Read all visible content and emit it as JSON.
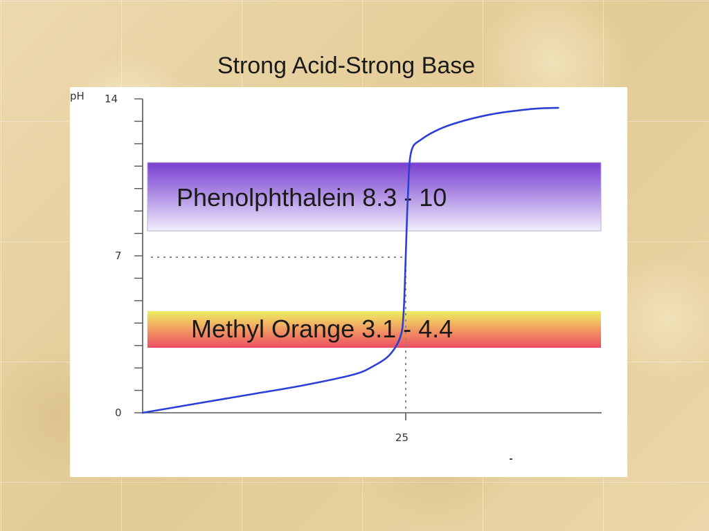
{
  "slide": {
    "title": "Strong Acid-Strong Base"
  },
  "chart_data": {
    "type": "line",
    "ylabel": "pH",
    "ylim": [
      0,
      14
    ],
    "y_ticks_labeled": [
      0,
      7,
      14
    ],
    "x_ticks_labeled": [
      25
    ],
    "equivalence_point": {
      "x": 25,
      "y": 7
    },
    "grid": false,
    "series": [
      {
        "color": "#2b3fd6",
        "x": [
          0,
          5,
          10,
          15,
          20,
          22,
          23.5,
          24.5,
          24.8,
          25,
          25.2,
          25.5,
          26.5,
          29,
          33,
          37,
          39.5
        ],
        "y": [
          0.0,
          0.4,
          0.8,
          1.2,
          1.7,
          2.1,
          2.6,
          3.4,
          4.5,
          7.0,
          9.6,
          11.6,
          12.2,
          12.8,
          13.3,
          13.55,
          13.6
        ]
      }
    ],
    "bands": [
      {
        "label": "Phenolphthalein 8.3 - 10",
        "y_range": [
          8.3,
          10
        ],
        "colors": [
          "#7a3fd0",
          "#f0eaff"
        ]
      },
      {
        "label": "Methyl Orange 3.1 - 4.4",
        "y_range": [
          3.1,
          4.4
        ],
        "colors": [
          "#f0f060",
          "#ee5560"
        ]
      }
    ]
  }
}
